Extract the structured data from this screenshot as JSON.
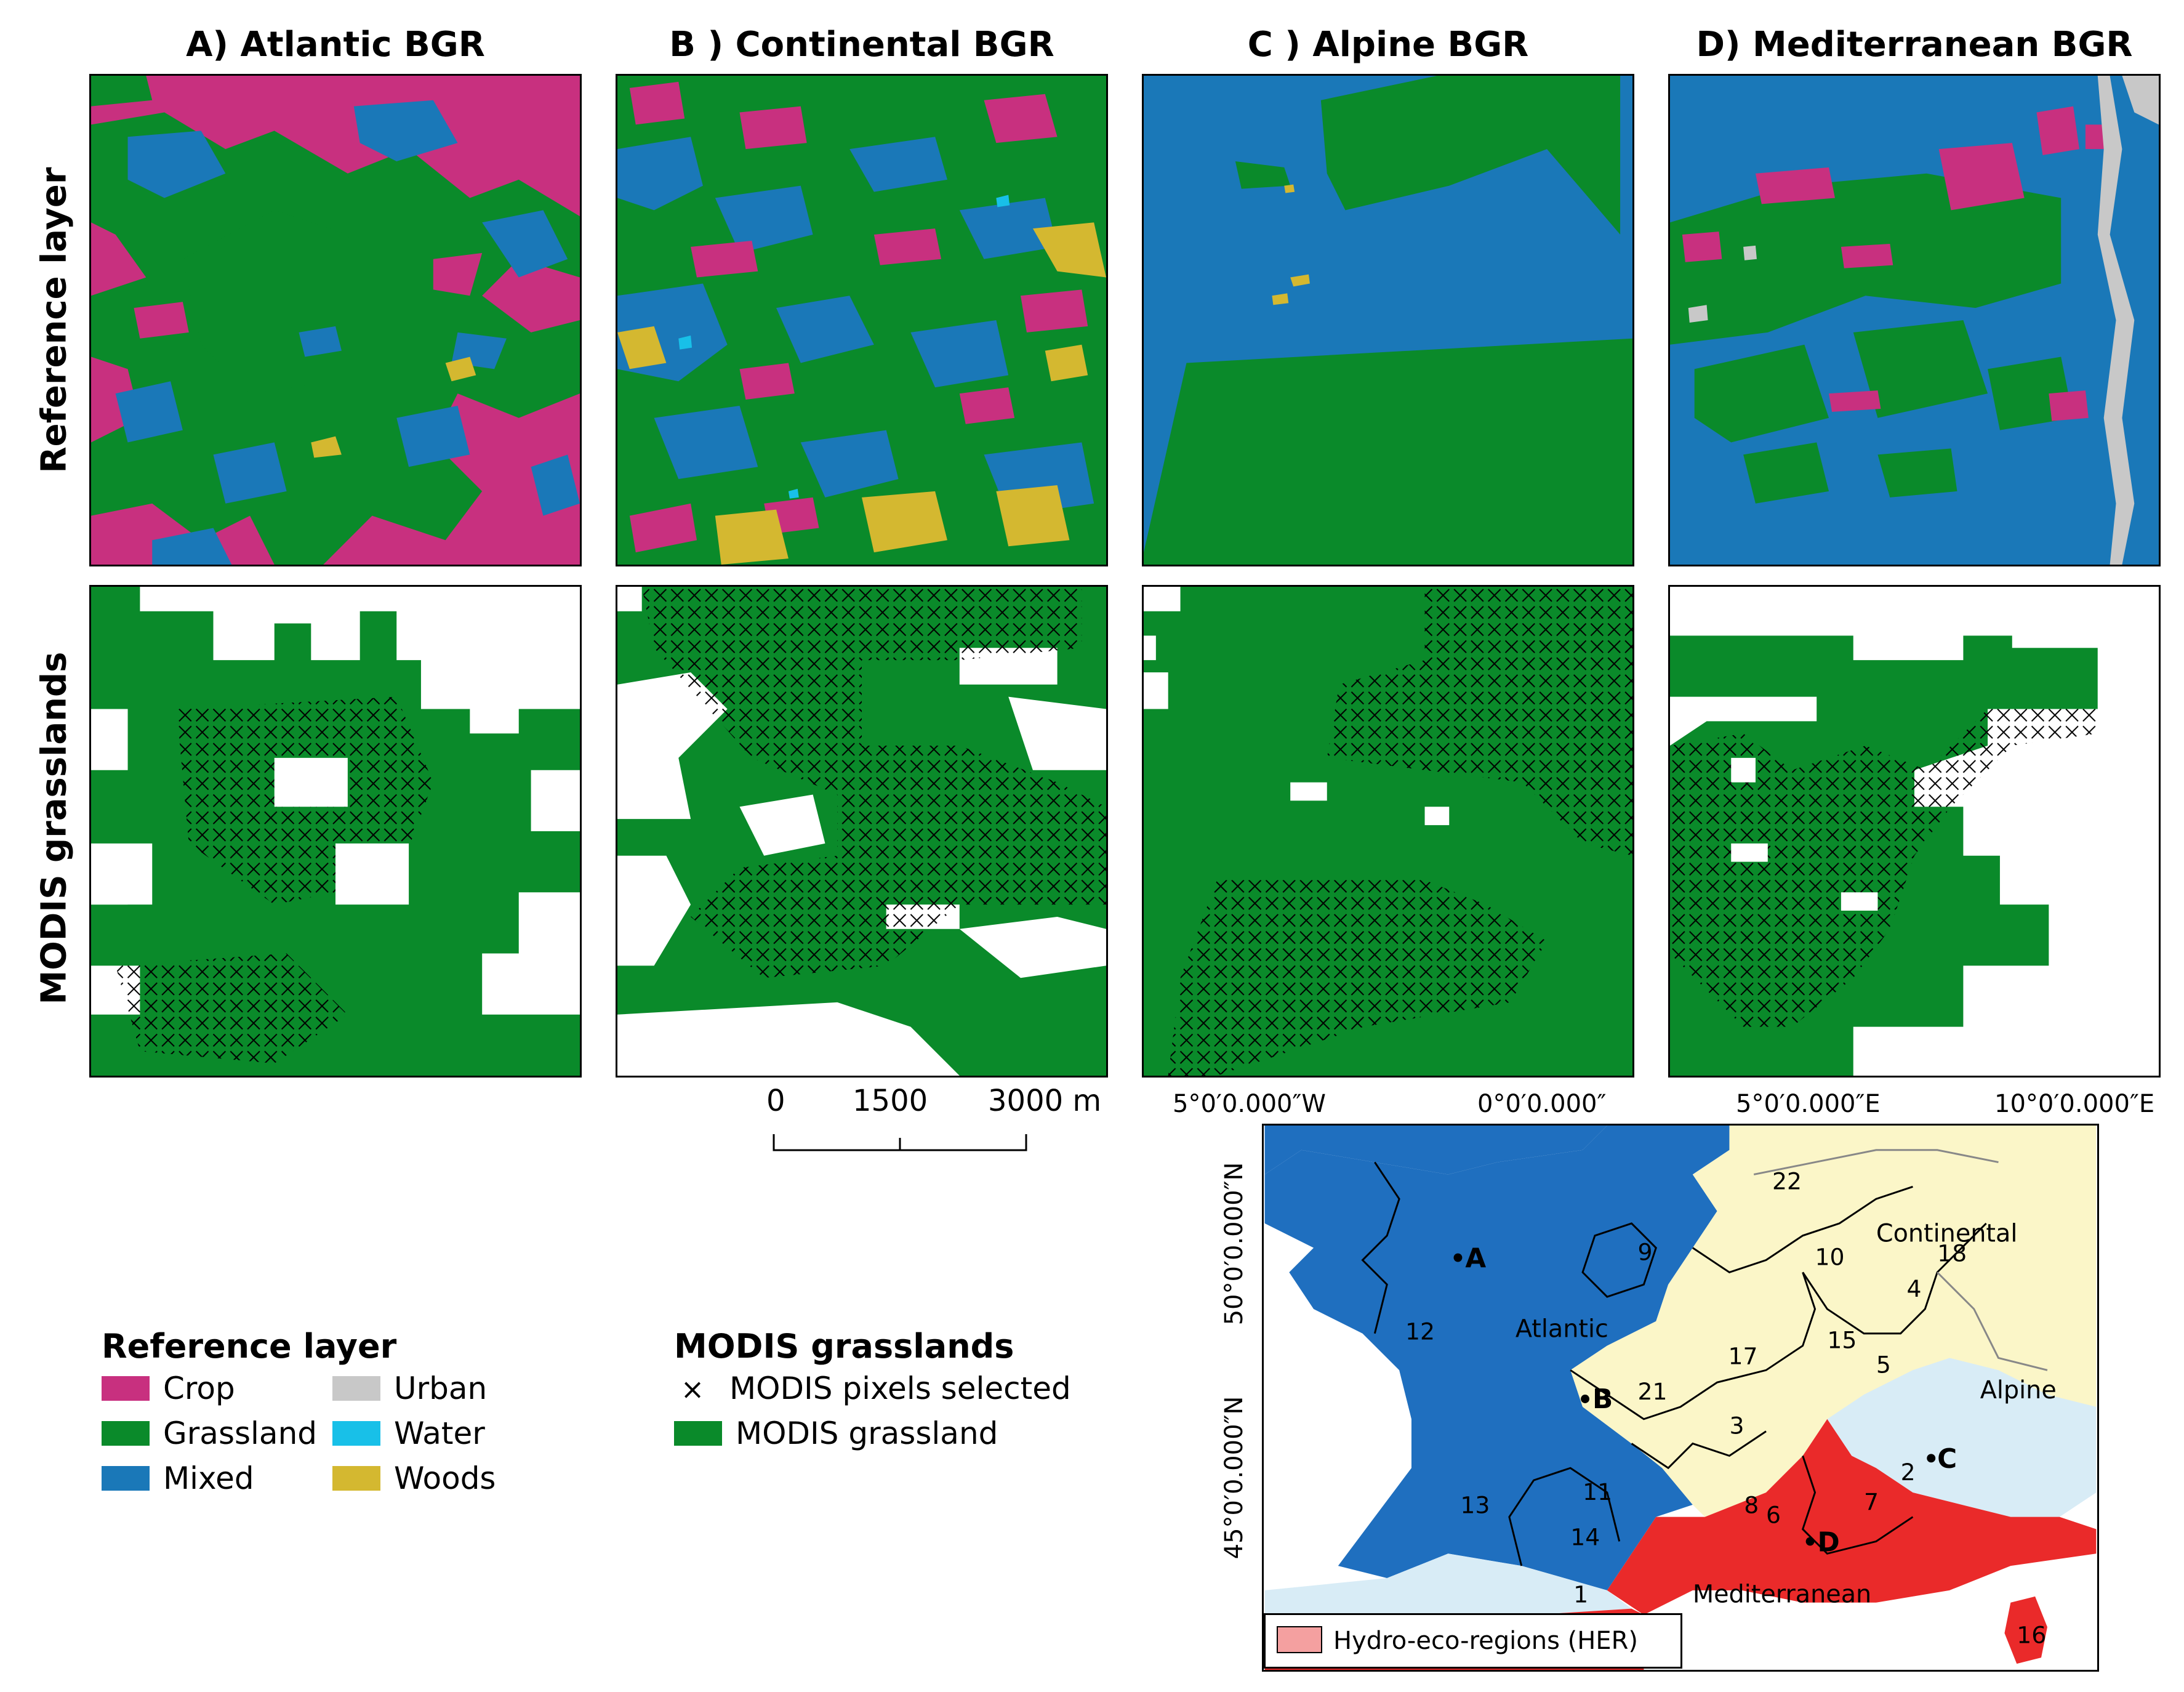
{
  "columns": [
    {
      "id": "A",
      "title": "A) Atlantic BGR"
    },
    {
      "id": "B",
      "title": "B ) Continental BGR"
    },
    {
      "id": "C",
      "title": "C ) Alpine BGR"
    },
    {
      "id": "D",
      "title": "D) Mediterranean BGR"
    }
  ],
  "rows": [
    {
      "label": "Reference layer"
    },
    {
      "label": "MODIS grasslands"
    }
  ],
  "colors": {
    "crop": "#c8307f",
    "grassland": "#0a8a2a",
    "mixed": "#1a78b8",
    "urban": "#c8c8c8",
    "water": "#18c0e8",
    "woods": "#d4b830",
    "atlantic_region": "#1f6fbf",
    "continental_region": "#fbf6c8",
    "alpine_region": "#d8ecf6",
    "mediterranean_region": "#ea2a2a",
    "her_legend_fill": "#f4a0a0"
  },
  "scale_bar": {
    "labels": [
      "0",
      "1500",
      "3000 m"
    ]
  },
  "legend_reference": {
    "title": "Reference layer",
    "items": [
      {
        "label": "Crop",
        "color": "#c8307f"
      },
      {
        "label": "Urban",
        "color": "#c8c8c8"
      },
      {
        "label": "Grassland",
        "color": "#0a8a2a"
      },
      {
        "label": "Water",
        "color": "#18c0e8"
      },
      {
        "label": "Mixed",
        "color": "#1a78b8"
      },
      {
        "label": "Woods",
        "color": "#d4b830"
      }
    ]
  },
  "legend_modis": {
    "title": "MODIS grasslands",
    "items": [
      {
        "label": "MODIS pixels selected",
        "symbol": "×"
      },
      {
        "label": "MODIS grassland",
        "color": "#0a8a2a"
      }
    ]
  },
  "map": {
    "x_ticks": [
      "5°0′0.000″W",
      "0°0′0.000″",
      "5°0′0.000″E",
      "10°0′0.000″E"
    ],
    "y_ticks": [
      "50°0′0.000″N",
      "45°0′0.000″N"
    ],
    "region_names": [
      "Atlantic",
      "Continental",
      "Alpine",
      "Mediterranean"
    ],
    "site_markers": [
      "A",
      "B",
      "C",
      "D"
    ],
    "her_numbers": [
      "1",
      "2",
      "3",
      "4",
      "5",
      "6",
      "7",
      "8",
      "9",
      "10",
      "11",
      "12",
      "13",
      "14",
      "15",
      "16",
      "17",
      "18",
      "21",
      "22"
    ],
    "legend_label": "Hydro-eco-regions (HER)"
  }
}
